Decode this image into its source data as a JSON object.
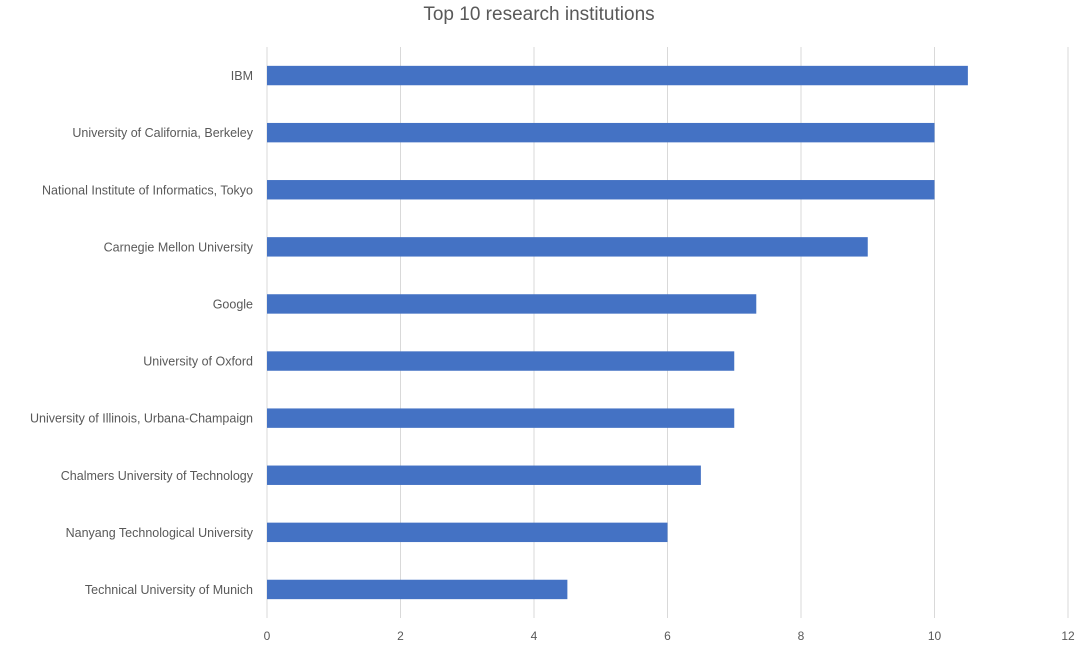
{
  "chart_data": {
    "type": "bar",
    "orientation": "horizontal",
    "title": "Top 10 research institutions",
    "xlabel": "",
    "ylabel": "",
    "categories": [
      "IBM",
      "University of California, Berkeley",
      "National Institute of Informatics, Tokyo",
      "Carnegie Mellon University",
      "Google",
      "University of Oxford",
      "University of Illinois, Urbana-Champaign",
      "Chalmers University of Technology",
      "Nanyang Technological University",
      "Technical University of Munich"
    ],
    "values": [
      10.5,
      10,
      10,
      9,
      7.33,
      7,
      7,
      6.5,
      6,
      4.5
    ],
    "xlim": [
      0,
      12
    ],
    "xticks": [
      0,
      2,
      4,
      6,
      8,
      10,
      12
    ],
    "grid": true,
    "legend": "none",
    "bar_color": "#4472C4"
  }
}
